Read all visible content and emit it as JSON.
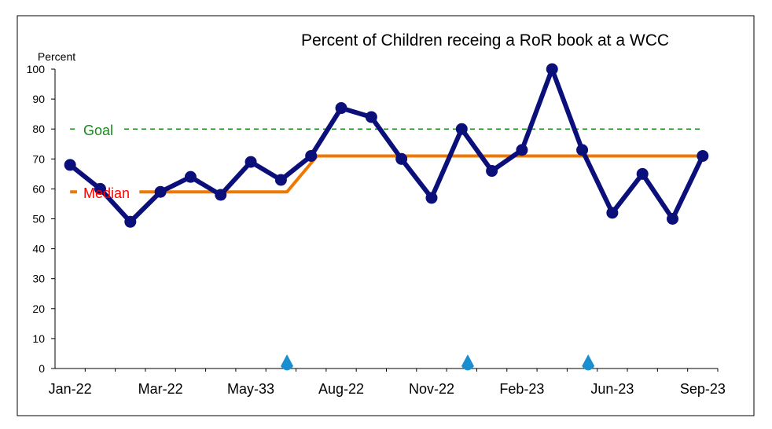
{
  "chart_data": {
    "type": "line",
    "title": "Percent of Children receing a RoR book at a WCC",
    "ylabel": "Percent",
    "xlabel": "",
    "ylim": [
      0,
      100
    ],
    "y_ticks": [
      0,
      10,
      20,
      30,
      40,
      50,
      60,
      70,
      80,
      90,
      100
    ],
    "x_tick_labels": [
      "Jan-22",
      "Mar-22",
      "May-33",
      "Aug-22",
      "Nov-22",
      "Feb-23",
      "Jun-23",
      "Sep-23"
    ],
    "x_tick_label_positions": [
      0,
      3,
      6,
      9,
      12,
      15,
      18,
      21
    ],
    "grid": false,
    "series": [
      {
        "values": [
          68,
          60,
          49,
          59,
          64,
          58,
          69,
          63,
          71,
          87,
          84,
          70,
          57,
          80,
          66,
          73,
          100,
          73,
          52,
          65,
          50,
          71
        ],
        "color": "#0a0f7a"
      }
    ],
    "median": {
      "label": "Median",
      "color": "#f07800",
      "label_color": "#ff0000",
      "path": [
        [
          2.3,
          59
        ],
        [
          7.2,
          59
        ],
        [
          8.2,
          71
        ],
        [
          21,
          71
        ]
      ]
    },
    "goal": {
      "label": "Goal",
      "value": 80,
      "color": "#1a8a1a"
    },
    "markers": {
      "color": "#1a8fd0",
      "x_positions": [
        7.2,
        13.2,
        17.2
      ]
    }
  }
}
